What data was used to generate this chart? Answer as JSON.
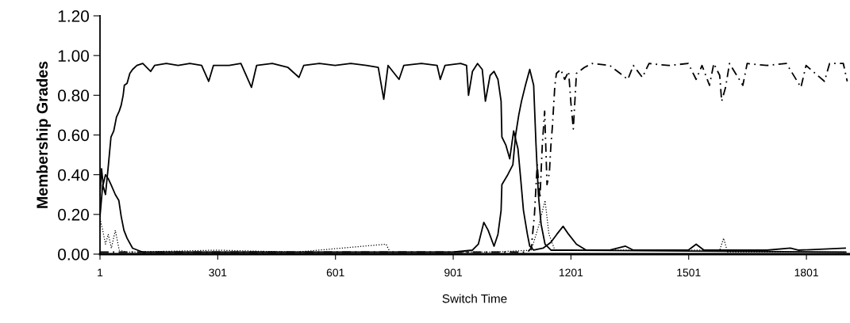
{
  "chart_data": {
    "type": "line",
    "xlabel": "Switch Time",
    "ylabel": "Membership Grades",
    "xlim": [
      1,
      1910
    ],
    "xticks": [
      1,
      301,
      601,
      901,
      1201,
      1501,
      1801
    ],
    "ylim": [
      0,
      1.2
    ],
    "yticks": [
      {
        "value": 0,
        "label": "0.00"
      },
      {
        "value": 0.2,
        "label": "0.20"
      },
      {
        "value": 0.4,
        "label": "0.40"
      },
      {
        "value": 0.6,
        "label": "0.60"
      },
      {
        "value": 0.8,
        "label": "0.80"
      },
      {
        "value": 1.0,
        "label": "1.00"
      },
      {
        "value": 1.2,
        "label": "1.20"
      }
    ],
    "grid": false,
    "legend": false,
    "marker": "none",
    "series": [
      {
        "color": "#000000",
        "line_style": "solid",
        "x": [
          1,
          8,
          15,
          22,
          29,
          36,
          43,
          50,
          55,
          60,
          63,
          70,
          77,
          84,
          95,
          110,
          130,
          140,
          170,
          200,
          230,
          260,
          278,
          290,
          330,
          360,
          387,
          400,
          440,
          480,
          508,
          520,
          560,
          600,
          640,
          680,
          710,
          724,
          735,
          763,
          775,
          820,
          860,
          868,
          880,
          920,
          935,
          940,
          950,
          963,
          975,
          983,
          995,
          1005,
          1015,
          1023,
          1025,
          1035,
          1045,
          1055,
          1066,
          1072,
          1080,
          1090,
          1096,
          1106,
          1130,
          1150,
          1165,
          1181,
          1195,
          1215,
          1240,
          1300,
          1340,
          1360,
          1500,
          1520,
          1540,
          1700,
          1760,
          1780,
          1900
        ],
        "values": [
          0.19,
          0.35,
          0.3,
          0.44,
          0.59,
          0.62,
          0.69,
          0.72,
          0.75,
          0.8,
          0.85,
          0.86,
          0.91,
          0.93,
          0.95,
          0.96,
          0.92,
          0.95,
          0.96,
          0.95,
          0.96,
          0.95,
          0.87,
          0.95,
          0.95,
          0.96,
          0.84,
          0.95,
          0.96,
          0.94,
          0.89,
          0.95,
          0.96,
          0.95,
          0.96,
          0.95,
          0.94,
          0.78,
          0.95,
          0.88,
          0.95,
          0.96,
          0.95,
          0.88,
          0.95,
          0.96,
          0.95,
          0.8,
          0.92,
          0.96,
          0.93,
          0.77,
          0.9,
          0.92,
          0.88,
          0.77,
          0.59,
          0.55,
          0.48,
          0.62,
          0.53,
          0.4,
          0.22,
          0.1,
          0.04,
          0.02,
          0.03,
          0.06,
          0.1,
          0.14,
          0.1,
          0.05,
          0.02,
          0.02,
          0.04,
          0.02,
          0.02,
          0.05,
          0.02,
          0.02,
          0.03,
          0.02,
          0.03
        ]
      },
      {
        "color": "#000000",
        "line_style": "solid",
        "x": [
          1,
          5,
          9,
          15,
          22,
          29,
          40,
          49,
          55,
          62,
          70,
          84,
          110,
          300,
          600,
          900,
          950,
          965,
          979,
          990,
          1005,
          1015,
          1023,
          1025,
          1040,
          1053,
          1060,
          1068,
          1075,
          1085,
          1096,
          1106,
          1112,
          1118,
          1125,
          1135,
          1150,
          1200,
          1900
        ],
        "values": [
          0.3,
          0.43,
          0.35,
          0.4,
          0.38,
          0.35,
          0.3,
          0.27,
          0.19,
          0.12,
          0.08,
          0.03,
          0.01,
          0.01,
          0.01,
          0.01,
          0.02,
          0.05,
          0.16,
          0.12,
          0.04,
          0.1,
          0.22,
          0.35,
          0.4,
          0.45,
          0.6,
          0.7,
          0.77,
          0.85,
          0.93,
          0.85,
          0.55,
          0.3,
          0.15,
          0.05,
          0.02,
          0.02,
          0.01
        ]
      },
      {
        "color": "#000000",
        "line_style": "dashed",
        "x": [
          1,
          1090,
          1100,
          1108,
          1115,
          1122,
          1128,
          1134,
          1140,
          1146,
          1150,
          1154,
          1160,
          1164,
          1175,
          1185,
          1195,
          1201,
          1207,
          1215,
          1235,
          1255,
          1300,
          1346,
          1360,
          1383,
          1400,
          1450,
          1500,
          1520,
          1535,
          1554,
          1565,
          1580,
          1585,
          1595,
          1605,
          1639,
          1650,
          1700,
          1750,
          1787,
          1800,
          1847,
          1860,
          1895,
          1905
        ],
        "values": [
          0.01,
          0.01,
          0.03,
          0.2,
          0.45,
          0.28,
          0.55,
          0.72,
          0.35,
          0.41,
          0.55,
          0.65,
          0.85,
          0.91,
          0.93,
          0.88,
          0.92,
          0.76,
          0.63,
          0.91,
          0.94,
          0.96,
          0.95,
          0.88,
          0.95,
          0.89,
          0.96,
          0.95,
          0.96,
          0.88,
          0.95,
          0.85,
          0.96,
          0.9,
          0.77,
          0.84,
          0.96,
          0.85,
          0.96,
          0.95,
          0.96,
          0.84,
          0.95,
          0.87,
          0.96,
          0.96,
          0.87
        ]
      },
      {
        "color": "#000000",
        "line_style": "dotted",
        "x": [
          1,
          8,
          15,
          22,
          30,
          40,
          50,
          70,
          300,
          500,
          730,
          740,
          1000,
          1100,
          1120,
          1135,
          1145,
          1160,
          1580,
          1590,
          1600,
          1905
        ],
        "values": [
          0.18,
          0.12,
          0.05,
          0.1,
          0.03,
          0.12,
          0.02,
          0.01,
          0.02,
          0.01,
          0.05,
          0.01,
          0.01,
          0.02,
          0.15,
          0.27,
          0.1,
          0.02,
          0.02,
          0.08,
          0.01,
          0.01
        ]
      }
    ]
  }
}
